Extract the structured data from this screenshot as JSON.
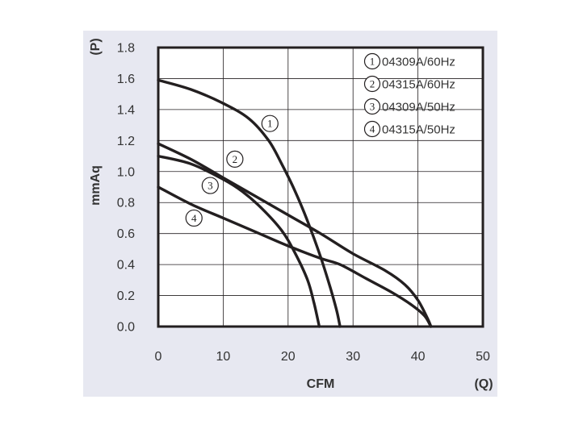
{
  "chart_data": {
    "type": "line",
    "xlabel": "CFM",
    "xlabel_unit": "(Q)",
    "ylabel": "mmAq",
    "ylabel_unit": "(P)",
    "xlim": [
      0,
      50
    ],
    "ylim": [
      0,
      1.8
    ],
    "x_ticks": [
      "0",
      "10",
      "20",
      "30",
      "40",
      "50"
    ],
    "y_ticks": [
      "0.0",
      "0.2",
      "0.4",
      "0.6",
      "0.8",
      "1.0",
      "1.2",
      "1.4",
      "1.6",
      "1.8"
    ],
    "grid": true,
    "legend_position": "top-right",
    "series": [
      {
        "name": "04309A/60Hz",
        "marker": "1",
        "points": [
          [
            0,
            1.59
          ],
          [
            5,
            1.53
          ],
          [
            10,
            1.44
          ],
          [
            14,
            1.34
          ],
          [
            17,
            1.2
          ],
          [
            19,
            1.05
          ],
          [
            21,
            0.88
          ],
          [
            23,
            0.68
          ],
          [
            25,
            0.45
          ],
          [
            26.5,
            0.25
          ],
          [
            27.5,
            0.1
          ],
          [
            28,
            0.0
          ]
        ]
      },
      {
        "name": "04315A/60Hz",
        "marker": "2",
        "points": [
          [
            0,
            1.18
          ],
          [
            5,
            1.08
          ],
          [
            10,
            0.96
          ],
          [
            15,
            0.84
          ],
          [
            20,
            0.72
          ],
          [
            25,
            0.6
          ],
          [
            30,
            0.47
          ],
          [
            35,
            0.36
          ],
          [
            38,
            0.27
          ],
          [
            40,
            0.17
          ],
          [
            41.5,
            0.05
          ],
          [
            42,
            0.0
          ]
        ]
      },
      {
        "name": "04309A/50Hz",
        "marker": "3",
        "points": [
          [
            0,
            1.1
          ],
          [
            5,
            1.05
          ],
          [
            10,
            0.95
          ],
          [
            13,
            0.87
          ],
          [
            16,
            0.76
          ],
          [
            19,
            0.62
          ],
          [
            21,
            0.48
          ],
          [
            23,
            0.3
          ],
          [
            24,
            0.15
          ],
          [
            24.8,
            0.0
          ]
        ]
      },
      {
        "name": "04315A/50Hz",
        "marker": "4",
        "points": [
          [
            0,
            0.9
          ],
          [
            5,
            0.79
          ],
          [
            10,
            0.7
          ],
          [
            15,
            0.61
          ],
          [
            20,
            0.52
          ],
          [
            25,
            0.44
          ],
          [
            28,
            0.4
          ],
          [
            32,
            0.31
          ],
          [
            36,
            0.22
          ],
          [
            39,
            0.14
          ],
          [
            41,
            0.07
          ],
          [
            42,
            0.0
          ]
        ]
      }
    ],
    "markers": [
      {
        "label": "1",
        "x": 17.2,
        "y": 1.31
      },
      {
        "label": "2",
        "x": 11.8,
        "y": 1.08
      },
      {
        "label": "3",
        "x": 8.0,
        "y": 0.91
      },
      {
        "label": "4",
        "x": 5.5,
        "y": 0.7
      }
    ],
    "colors": {
      "panel_background": "#e7e8f1",
      "plot_background": "#ffffff",
      "curve": "#231f20",
      "grid": "#231f20",
      "text": "#333333"
    }
  }
}
